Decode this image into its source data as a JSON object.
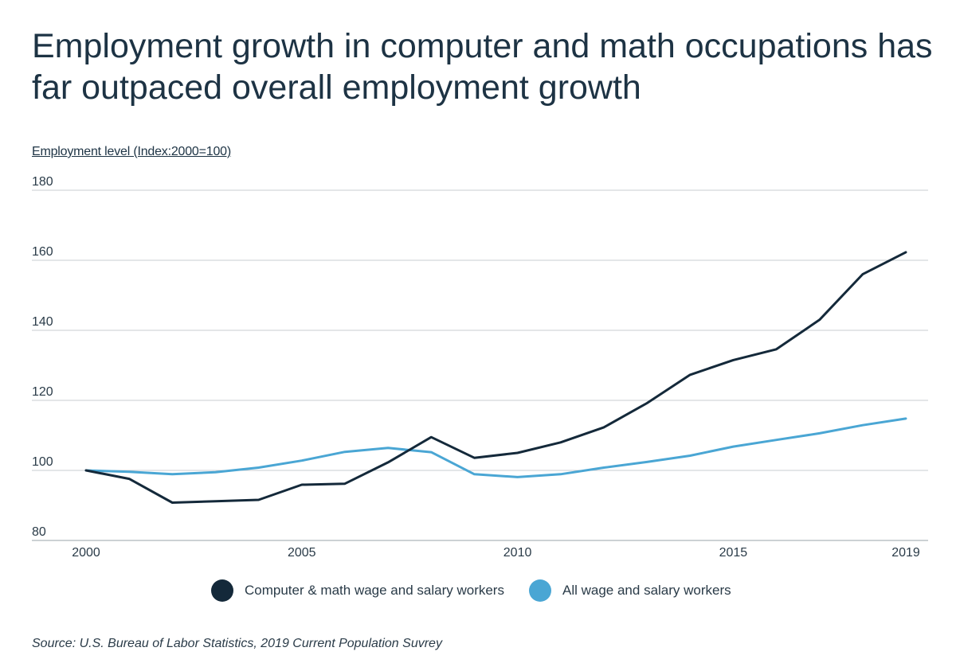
{
  "title": "Employment growth in computer and math occupations has far outpaced overall employment growth",
  "source": "Source: U.S. Bureau of Labor Statistics, 2019 Current Population Suvrey",
  "chart_data": {
    "type": "line",
    "title": "Employment growth in computer and math occupations has far outpaced overall employment growth",
    "ylabel": "Employment level (Index:2000=100)",
    "xlabel": "",
    "ylim": [
      80,
      180
    ],
    "yticks": [
      80,
      100,
      120,
      140,
      160,
      180
    ],
    "xticks": [
      2000,
      2005,
      2010,
      2015,
      2019
    ],
    "x": [
      2000,
      2001,
      2002,
      2003,
      2004,
      2005,
      2006,
      2007,
      2008,
      2009,
      2010,
      2011,
      2012,
      2013,
      2014,
      2015,
      2016,
      2017,
      2018,
      2019
    ],
    "grid": true,
    "legend_position": "bottom",
    "series": [
      {
        "name": "Computer & math wage and salary workers",
        "color": "#14293a",
        "values": [
          100.0,
          97.6,
          90.8,
          91.2,
          91.6,
          95.9,
          96.2,
          102.3,
          109.5,
          103.6,
          105.0,
          108.0,
          112.3,
          119.2,
          127.3,
          131.5,
          134.6,
          143.0,
          156.0,
          162.3
        ]
      },
      {
        "name": "All wage and salary workers",
        "color": "#4aa6d4",
        "values": [
          100.0,
          99.6,
          98.9,
          99.5,
          100.8,
          102.8,
          105.3,
          106.4,
          105.2,
          98.9,
          98.1,
          98.9,
          100.8,
          102.4,
          104.2,
          106.8,
          108.7,
          110.6,
          112.9,
          114.8
        ]
      }
    ]
  }
}
